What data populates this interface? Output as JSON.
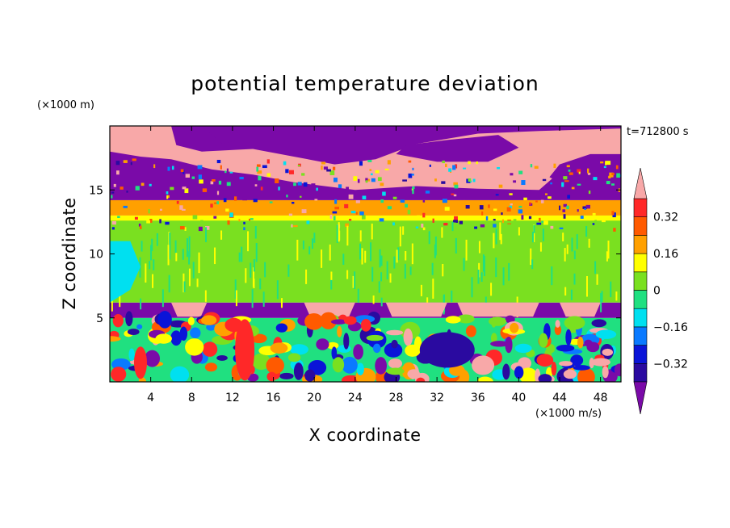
{
  "chart_data": {
    "type": "heatmap",
    "title": "potential temperature deviation",
    "xlabel": "X coordinate",
    "ylabel": "Z coordinate",
    "x_unit_label": "(×1000 m/s)",
    "y_unit_label": "(×1000 m)",
    "time_label": "t=712800 s",
    "xlim": [
      0,
      50
    ],
    "ylim": [
      0,
      20
    ],
    "x_ticks": [
      4,
      8,
      12,
      16,
      20,
      24,
      28,
      32,
      36,
      40,
      44,
      48
    ],
    "y_ticks": [
      5,
      10,
      15
    ],
    "colorbar": {
      "levels": [
        -0.4,
        -0.32,
        -0.24,
        -0.16,
        -0.08,
        0,
        0.08,
        0.16,
        0.24,
        0.32,
        0.4
      ],
      "tick_values": [
        0.32,
        0.16,
        0,
        -0.16,
        -0.32
      ],
      "tick_labels": [
        "0.32",
        "0.16",
        "0",
        "−0.16",
        "−0.32"
      ],
      "colors": [
        "#7a0aa8",
        "#2a0aa0",
        "#0a14d8",
        "#0a7aff",
        "#00e0f0",
        "#20e080",
        "#7ae020",
        "#ffff00",
        "#ffa000",
        "#ff5a00",
        "#ff2828",
        "#f8a8a8"
      ],
      "extend": "both"
    },
    "regions": [
      {
        "name": "upper layer",
        "z_range": [
          14,
          20
        ],
        "values": "mix of strongly negative (purple) and strongly positive (pink)"
      },
      {
        "name": "mid layer",
        "z_range": [
          6,
          13
        ],
        "values": "near 0 to +0.08 (green)"
      },
      {
        "name": "interface band",
        "z_range": [
          5,
          6
        ],
        "values": "purple with pink lobes"
      },
      {
        "name": "lower layer",
        "z_range": [
          0,
          5
        ],
        "values": "turbulent mix from -0.4 to +0.4"
      }
    ]
  }
}
